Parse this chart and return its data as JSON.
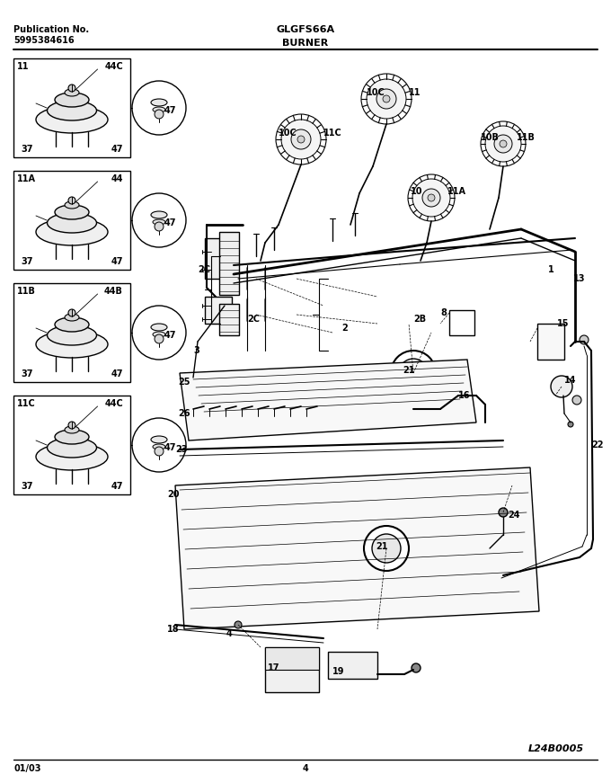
{
  "title_model": "GLGFS66A",
  "title_section": "BURNER",
  "pub_no_label": "Publication No.",
  "pub_no": "5995384616",
  "date": "01/03",
  "page": "4",
  "image_code": "L24B0005",
  "bg_color": "#ffffff",
  "fig_w": 6.8,
  "fig_h": 8.71,
  "dpi": 100
}
